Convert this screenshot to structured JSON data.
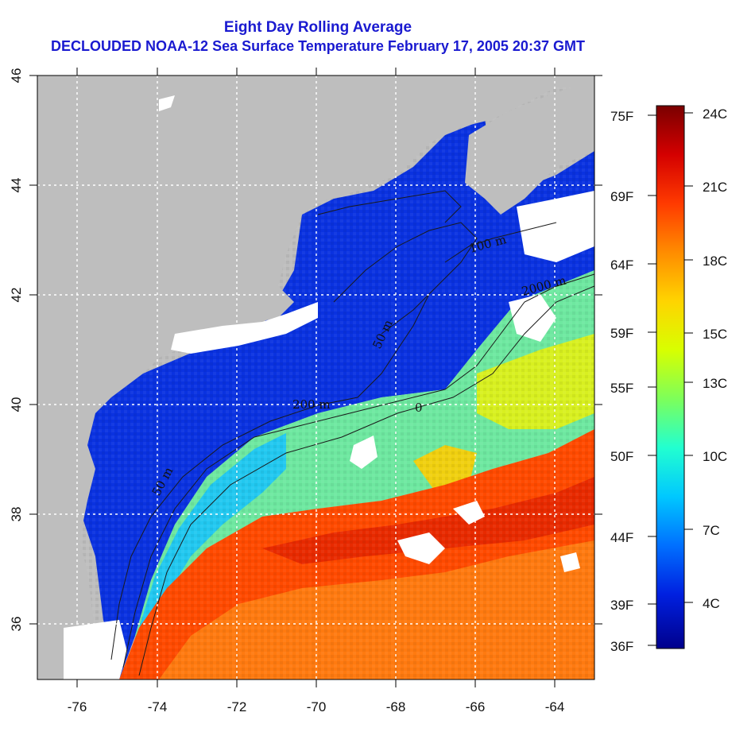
{
  "title": "Eight Day Rolling Average",
  "subtitle": "DECLOUDED NOAA-12 Sea Surface Temperature February 17, 2005 20:37 GMT",
  "map": {
    "lon_range": [
      -77,
      -63
    ],
    "lat_range": [
      35,
      46
    ],
    "x_ticks": [
      "-76",
      "-74",
      "-72",
      "-70",
      "-68",
      "-66",
      "-64"
    ],
    "y_ticks": [
      "36",
      "38",
      "40",
      "42",
      "44",
      "46"
    ],
    "contour_labels": [
      "50 m",
      "200 m",
      "100 m",
      "2000 m",
      "0"
    ],
    "land_color": "#bebebe",
    "cloud_color": "#ffffff"
  },
  "color_scale": {
    "fahrenheit": [
      "75F",
      "69F",
      "64F",
      "59F",
      "55F",
      "50F",
      "44F",
      "39F",
      "36F"
    ],
    "celsius": [
      "24C",
      "21C",
      "18C",
      "15C",
      "13C",
      "10C",
      "7C",
      "4C"
    ],
    "gradient": [
      "#7a0000",
      "#d40000",
      "#ff3a00",
      "#ff8c00",
      "#ffd400",
      "#d8ff00",
      "#7dff5a",
      "#22ffd0",
      "#00c8ff",
      "#0070ff",
      "#0020e0",
      "#00008c"
    ]
  }
}
